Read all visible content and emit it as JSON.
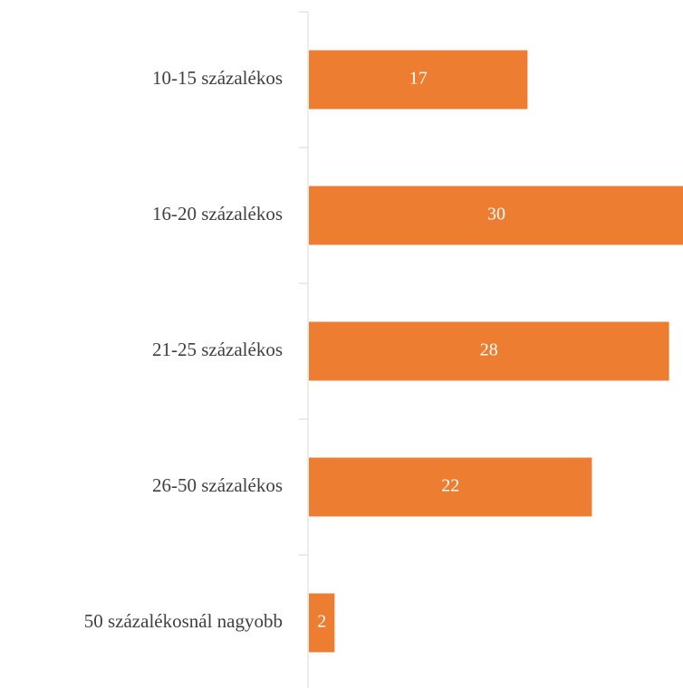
{
  "chart_data": {
    "type": "bar",
    "orientation": "horizontal",
    "categories": [
      "10-15 százalékos",
      "16-20 százalékos",
      "21-25 százalékos",
      "26-50 százalékos",
      "50 százalékosnál nagyobb"
    ],
    "values": [
      17,
      30,
      28,
      22,
      2
    ],
    "color": "#ed7d31"
  }
}
